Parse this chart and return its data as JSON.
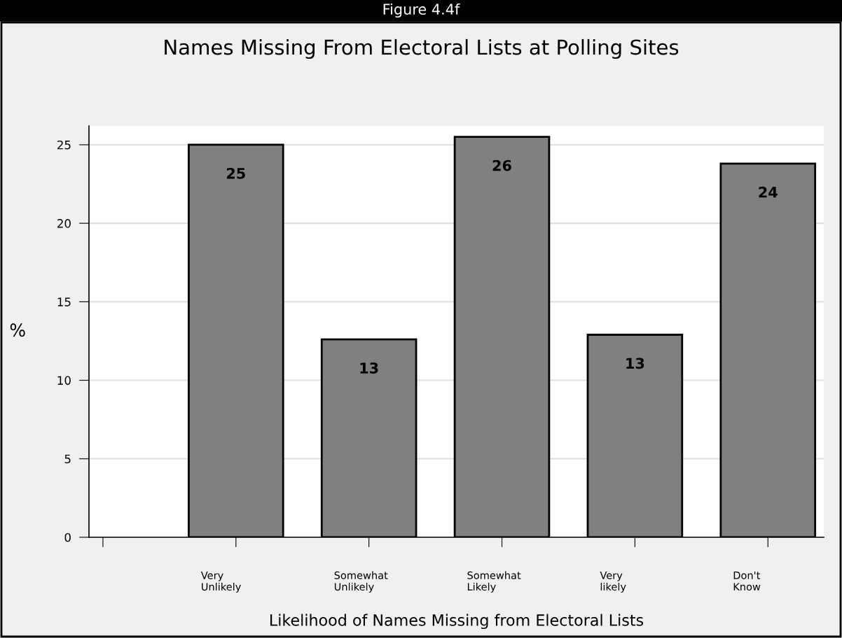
{
  "chart_data": {
    "type": "bar",
    "title": "Names Missing From Electoral Lists at Polling Sites",
    "annotations": [
      "Figure 4.4f"
    ],
    "xlabel": "Likelihood of Names Missing from Electoral Lists",
    "ylabel": "%",
    "categories": [
      null,
      "Very\nUnlikely",
      "Somewhat\nUnlikely",
      "Somewhat\nLikely",
      "Very\nlikely",
      "Don't\nKnow"
    ],
    "values": [
      null,
      25,
      12.6,
      25.5,
      12.9,
      23.8
    ],
    "value_labels": [
      null,
      "25",
      "13",
      "26",
      "13",
      "24"
    ],
    "color": "#808080",
    "ylim": [
      0,
      26.2
    ],
    "yticks": [
      0,
      5,
      10,
      15,
      20,
      25
    ],
    "grid": "y",
    "legend": false
  }
}
